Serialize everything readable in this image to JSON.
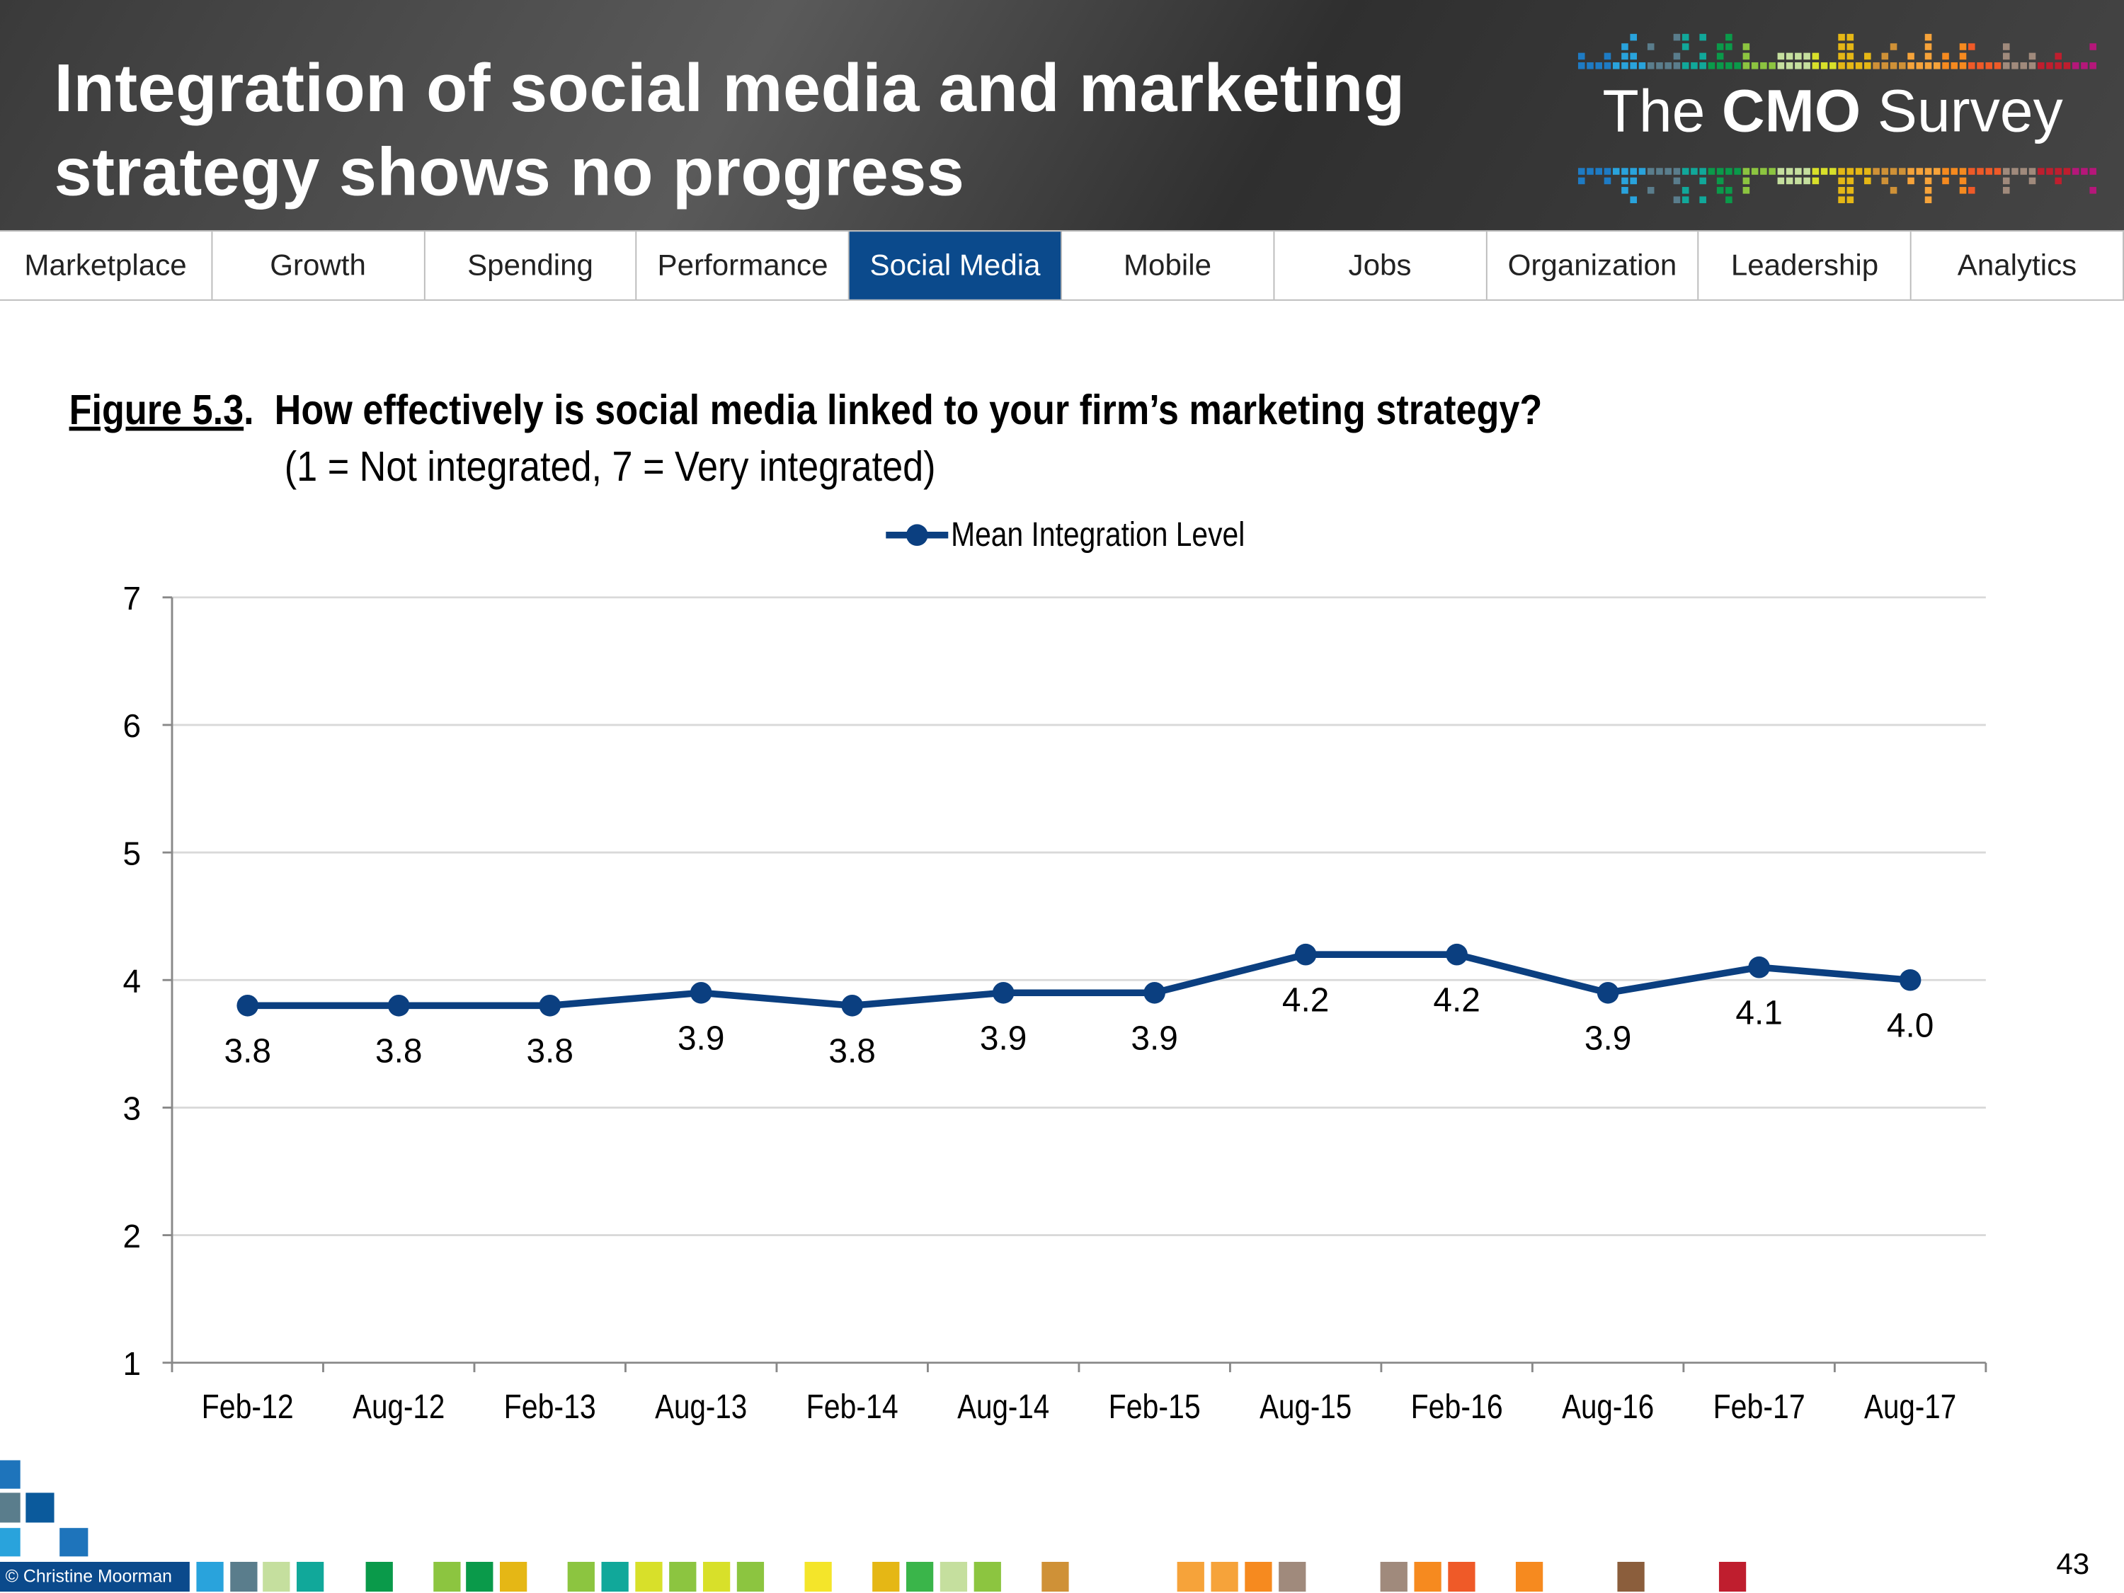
{
  "header": {
    "title_line1": "Integration of social media and marketing",
    "title_line2": "strategy shows no progress",
    "logo": {
      "pre": "The",
      "bold": "CMO",
      "post": "Survey"
    }
  },
  "nav": {
    "tabs": [
      {
        "label": "Marketplace"
      },
      {
        "label": "Growth"
      },
      {
        "label": "Spending"
      },
      {
        "label": "Performance"
      },
      {
        "label": "Social Media",
        "active": true
      },
      {
        "label": "Mobile"
      },
      {
        "label": "Jobs"
      },
      {
        "label": "Organization"
      },
      {
        "label": "Leadership"
      },
      {
        "label": "Analytics"
      }
    ],
    "active_color": "#0b4a8c"
  },
  "figure": {
    "label": "Figure 5.3",
    "question": "How effectively is social media linked to your firm’s marketing strategy?",
    "scale_note": "(1 = Not integrated,  7 = Very integrated)"
  },
  "chart_data": {
    "type": "line",
    "categories": [
      "Feb-12",
      "Aug-12",
      "Feb-13",
      "Aug-13",
      "Feb-14",
      "Aug-14",
      "Feb-15",
      "Aug-15",
      "Feb-16",
      "Aug-16",
      "Feb-17",
      "Aug-17"
    ],
    "series": [
      {
        "name": "Mean Integration Level",
        "values": [
          3.8,
          3.8,
          3.8,
          3.9,
          3.8,
          3.9,
          3.9,
          4.2,
          4.2,
          3.9,
          4.1,
          4.0
        ],
        "labels": [
          "3.8",
          "3.8",
          "3.8",
          "3.9",
          "3.8",
          "3.9",
          "3.9",
          "4.2",
          "4.2",
          "3.9",
          "4.1",
          "4.0"
        ],
        "color": "#0b3f80"
      }
    ],
    "ylim": [
      1,
      7
    ],
    "yticks": [
      "1",
      "2",
      "3",
      "4",
      "5",
      "6",
      "7"
    ],
    "grid": true,
    "legend": "top-center"
  },
  "footer": {
    "copyright": "© Christine Moorman",
    "page": "43"
  }
}
